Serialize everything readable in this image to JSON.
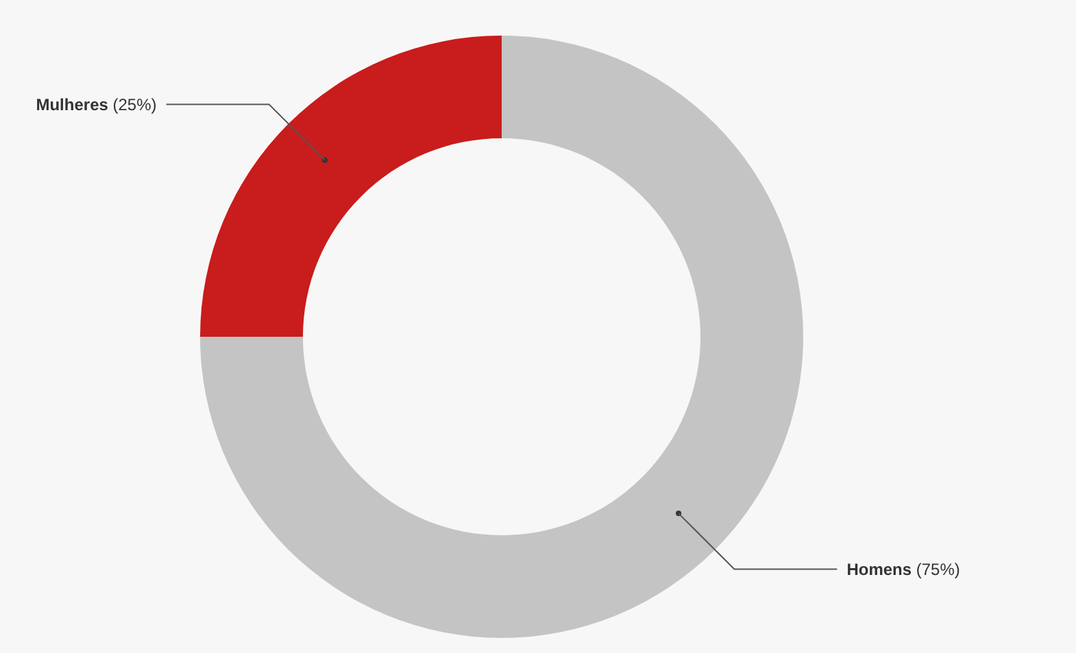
{
  "chart_data": {
    "type": "donut",
    "categories": [
      "Homens",
      "Mulheres"
    ],
    "values": [
      75,
      25
    ],
    "colors": [
      "#c4c4c4",
      "#c91c1c"
    ],
    "value_labels": [
      "(75%)",
      "(25%)"
    ]
  }
}
